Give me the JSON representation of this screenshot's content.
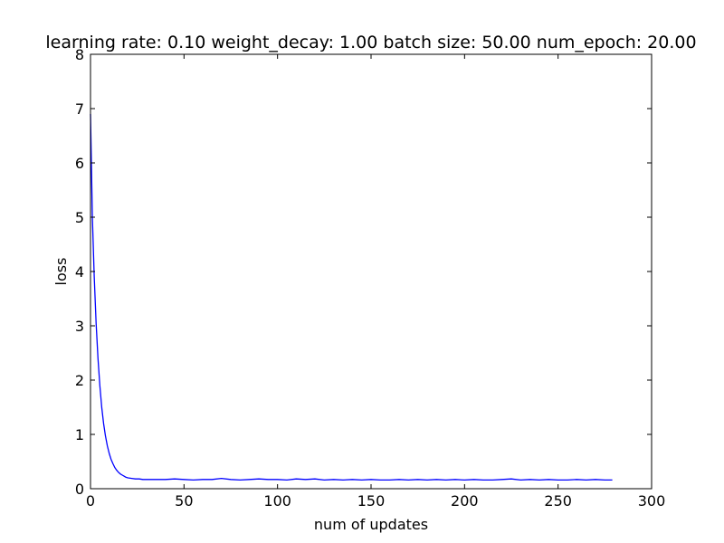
{
  "chart_data": {
    "type": "line",
    "title": "learning rate: 0.10 weight_decay: 1.00 batch size: 50.00 num_epoch: 20.00",
    "xlabel": "num of updates",
    "ylabel": "loss",
    "xlim": [
      0,
      300
    ],
    "ylim": [
      0,
      8
    ],
    "xticks": [
      "0",
      "50",
      "100",
      "150",
      "200",
      "250",
      "300"
    ],
    "yticks": [
      "0",
      "1",
      "2",
      "3",
      "4",
      "5",
      "6",
      "7",
      "8"
    ],
    "grid": false,
    "legend": "none",
    "series": [
      {
        "color": "#0000ff",
        "x": [
          0,
          1,
          2,
          3,
          4,
          5,
          6,
          7,
          8,
          9,
          10,
          11,
          12,
          13,
          14,
          15,
          16,
          17,
          18,
          19,
          20,
          22,
          24,
          26,
          28,
          30,
          35,
          40,
          45,
          50,
          55,
          60,
          65,
          70,
          75,
          80,
          85,
          90,
          95,
          100,
          105,
          110,
          115,
          120,
          125,
          130,
          135,
          140,
          145,
          150,
          155,
          160,
          165,
          170,
          175,
          180,
          185,
          190,
          195,
          200,
          205,
          210,
          215,
          220,
          225,
          230,
          235,
          240,
          245,
          250,
          255,
          260,
          265,
          270,
          275,
          279
        ],
        "values": [
          6.9,
          5.0,
          3.9,
          3.05,
          2.4,
          1.9,
          1.5,
          1.2,
          0.97,
          0.79,
          0.65,
          0.54,
          0.46,
          0.39,
          0.34,
          0.3,
          0.27,
          0.25,
          0.23,
          0.21,
          0.2,
          0.19,
          0.18,
          0.18,
          0.17,
          0.17,
          0.17,
          0.17,
          0.18,
          0.17,
          0.16,
          0.17,
          0.17,
          0.19,
          0.17,
          0.16,
          0.17,
          0.18,
          0.17,
          0.17,
          0.16,
          0.18,
          0.17,
          0.18,
          0.16,
          0.17,
          0.16,
          0.17,
          0.16,
          0.17,
          0.16,
          0.16,
          0.17,
          0.16,
          0.17,
          0.16,
          0.17,
          0.16,
          0.17,
          0.16,
          0.17,
          0.16,
          0.16,
          0.17,
          0.18,
          0.16,
          0.17,
          0.16,
          0.17,
          0.16,
          0.16,
          0.17,
          0.16,
          0.17,
          0.16,
          0.16
        ]
      }
    ]
  }
}
